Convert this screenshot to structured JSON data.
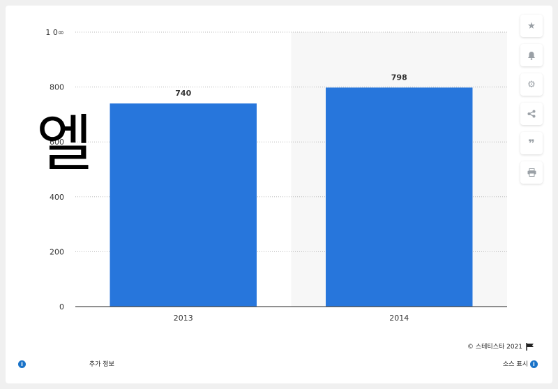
{
  "chart_data": {
    "type": "bar",
    "categories": [
      "2013",
      "2014"
    ],
    "values": [
      740,
      798
    ],
    "value_labels": [
      "740",
      "798"
    ],
    "ylim": [
      0,
      1000
    ],
    "yticks": [
      0,
      200,
      400,
      600,
      800,
      1000
    ],
    "ytick_labels": [
      "0",
      "200",
      "400",
      "600",
      "800",
      "1 0∞"
    ],
    "grid": true,
    "bar_color": "#2776dc",
    "highlight_band_color": "#f7f7f7"
  },
  "overlay_text": "엘",
  "toolbar": {
    "icons": [
      "star-icon",
      "bell-icon",
      "gear-icon",
      "share-icon",
      "quote-icon",
      "print-icon"
    ]
  },
  "footer": {
    "copyright": "©  스테티스타 2021",
    "more_info": "추가 정보",
    "show_source": "소스 표시"
  }
}
